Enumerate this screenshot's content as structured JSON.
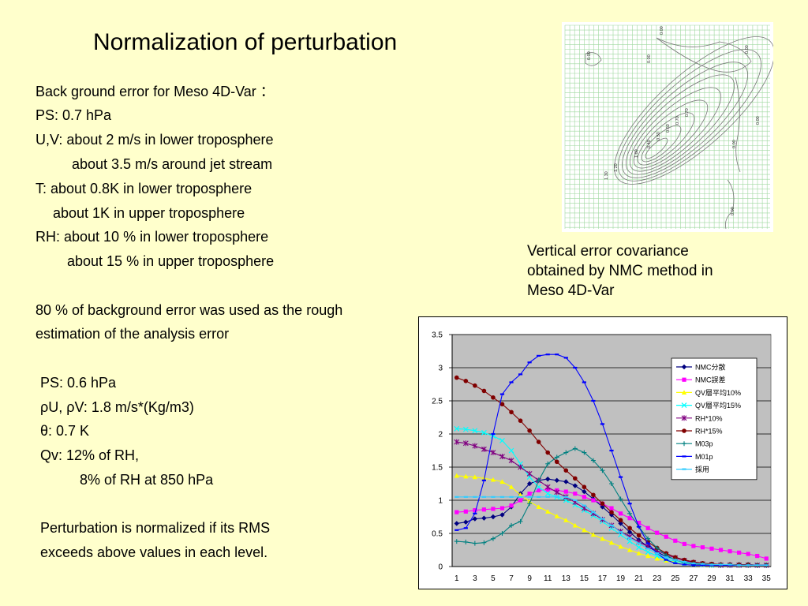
{
  "slide": {
    "title": "Normalization of perturbation",
    "caption": [
      "Vertical error covariance",
      "obtained by NMC method in",
      "Meso 4D-Var"
    ]
  },
  "text_lines": [
    {
      "text": "Back ground error for Meso 4D-Var ："
    },
    {
      "text": "PS: 0.7 hPa"
    },
    {
      "text": "U,V: about 2 m/s in lower troposphere"
    },
    {
      "text": "about 3.5 m/s around jet stream"
    },
    {
      "text": "T: about 0.8K in lower troposphere"
    },
    {
      "text": "about 1K in upper troposphere"
    },
    {
      "text": "RH: about 10 % in lower troposphere"
    },
    {
      "text": "about 15 % in upper troposphere"
    },
    {
      "text": "80 % of background error was used as the rough"
    },
    {
      "text": "estimation of the analysis error"
    },
    {
      "text": "PS: 0.6 hPa"
    },
    {
      "text": "ρU, ρV: 1.8 m/s*(Kg/m3)"
    },
    {
      "text": "θ: 0.7 K"
    },
    {
      "text": "Qv: 12% of RH,"
    },
    {
      "text": "8% of RH at 850 hPa"
    },
    {
      "text": "Perturbation is normalized if its RMS"
    },
    {
      "text": "exceeds above values in each level."
    }
  ],
  "contour_labels": [
    "0.00",
    "0.00",
    "0.00",
    "0.00",
    "0.70",
    "0.70",
    "0.60",
    "0.50",
    "0.40",
    "1.00",
    "1.20",
    "1.30",
    "0.00",
    "0.00",
    "0.00"
  ],
  "chart_data": {
    "type": "line",
    "x": [
      1,
      2,
      3,
      4,
      5,
      6,
      7,
      8,
      9,
      10,
      11,
      12,
      13,
      14,
      15,
      16,
      17,
      18,
      19,
      20,
      21,
      22,
      23,
      24,
      25,
      26,
      27,
      28,
      29,
      30,
      31,
      32,
      33,
      34,
      35
    ],
    "x_tick_labels": [
      "1",
      "3",
      "5",
      "7",
      "9",
      "11",
      "13",
      "15",
      "17",
      "19",
      "21",
      "23",
      "25",
      "27",
      "29",
      "31",
      "33",
      "35"
    ],
    "y_tick_labels": [
      "0",
      "0.5",
      "1",
      "1.5",
      "2",
      "2.5",
      "3",
      "3.5"
    ],
    "ylim": [
      0,
      3.5
    ],
    "grid": true,
    "legend_position": "right",
    "series": [
      {
        "name": "NMC分散",
        "color": "#000080",
        "marker": "diamond",
        "values": [
          0.65,
          0.67,
          0.72,
          0.73,
          0.75,
          0.78,
          0.9,
          1.1,
          1.25,
          1.3,
          1.32,
          1.3,
          1.28,
          1.22,
          1.13,
          1.02,
          0.9,
          0.78,
          0.65,
          0.52,
          0.4,
          0.3,
          0.22,
          0.15,
          0.1,
          0.07,
          0.05,
          0.04,
          0.03,
          0.03,
          0.03,
          0.03,
          0.03,
          0.02,
          0.02
        ]
      },
      {
        "name": "NMC誤差",
        "color": "#ff00ff",
        "marker": "square",
        "values": [
          0.82,
          0.83,
          0.85,
          0.86,
          0.87,
          0.88,
          0.92,
          1.0,
          1.1,
          1.15,
          1.16,
          1.15,
          1.13,
          1.1,
          1.05,
          1.0,
          0.95,
          0.88,
          0.8,
          0.73,
          0.66,
          0.58,
          0.51,
          0.45,
          0.39,
          0.34,
          0.31,
          0.29,
          0.27,
          0.25,
          0.23,
          0.21,
          0.19,
          0.16,
          0.12
        ]
      },
      {
        "name": "QV層平均10%",
        "color": "#ffff00",
        "marker": "triangle",
        "values": [
          1.37,
          1.36,
          1.35,
          1.33,
          1.31,
          1.28,
          1.2,
          1.08,
          0.98,
          0.9,
          0.83,
          0.76,
          0.7,
          0.62,
          0.55,
          0.48,
          0.42,
          0.36,
          0.3,
          0.25,
          0.2,
          0.16,
          0.12,
          0.09,
          0.07,
          0.05,
          0.04,
          0.03,
          0.02,
          0.02,
          0.02,
          0.02,
          0.02,
          0.02,
          0.02
        ]
      },
      {
        "name": "QV層平均15%",
        "color": "#00ffff",
        "marker": "x",
        "values": [
          2.08,
          2.07,
          2.05,
          2.02,
          1.97,
          1.9,
          1.75,
          1.55,
          1.35,
          1.2,
          1.1,
          1.05,
          1.0,
          0.93,
          0.85,
          0.77,
          0.68,
          0.58,
          0.48,
          0.38,
          0.29,
          0.22,
          0.16,
          0.11,
          0.08,
          0.05,
          0.04,
          0.03,
          0.02,
          0.02,
          0.02,
          0.02,
          0.02,
          0.02,
          0.02
        ]
      },
      {
        "name": "RH*10%",
        "color": "#800080",
        "marker": "star",
        "values": [
          1.88,
          1.86,
          1.82,
          1.77,
          1.72,
          1.66,
          1.6,
          1.5,
          1.4,
          1.3,
          1.2,
          1.12,
          1.05,
          0.97,
          0.88,
          0.8,
          0.71,
          0.62,
          0.53,
          0.45,
          0.37,
          0.3,
          0.24,
          0.18,
          0.13,
          0.09,
          0.06,
          0.04,
          0.03,
          0.02,
          0.02,
          0.02,
          0.02,
          0.02,
          0.02
        ]
      },
      {
        "name": "RH*15%",
        "color": "#800000",
        "marker": "circle",
        "values": [
          2.85,
          2.8,
          2.73,
          2.65,
          2.55,
          2.45,
          2.33,
          2.2,
          2.05,
          1.88,
          1.72,
          1.58,
          1.45,
          1.33,
          1.2,
          1.08,
          0.95,
          0.82,
          0.7,
          0.58,
          0.47,
          0.37,
          0.28,
          0.2,
          0.14,
          0.1,
          0.07,
          0.05,
          0.04,
          0.03,
          0.03,
          0.03,
          0.03,
          0.02,
          0.02
        ]
      },
      {
        "name": "M03p",
        "color": "#008080",
        "marker": "plus",
        "values": [
          0.38,
          0.37,
          0.35,
          0.36,
          0.42,
          0.5,
          0.62,
          0.68,
          0.95,
          1.3,
          1.55,
          1.65,
          1.72,
          1.78,
          1.72,
          1.6,
          1.45,
          1.25,
          1.02,
          0.8,
          0.6,
          0.42,
          0.28,
          0.17,
          0.1,
          0.06,
          0.04,
          0.03,
          0.02,
          0.02,
          0.02,
          0.02,
          0.02,
          0.02,
          0.02
        ]
      },
      {
        "name": "M01p",
        "color": "#0000ff",
        "marker": "dash",
        "values": [
          0.55,
          0.58,
          0.8,
          1.3,
          2.0,
          2.6,
          2.78,
          2.9,
          3.08,
          3.18,
          3.2,
          3.2,
          3.15,
          3.0,
          2.78,
          2.5,
          2.15,
          1.75,
          1.35,
          0.95,
          0.6,
          0.35,
          0.2,
          0.1,
          0.05,
          0.03,
          0.02,
          0.02,
          0.02,
          0.02,
          0.02,
          0.02,
          0.02,
          0.02,
          0.02
        ]
      },
      {
        "name": "採用",
        "color": "#33ccff",
        "marker": "dash",
        "values": [
          1.05,
          1.05,
          1.05,
          1.05,
          1.05,
          1.05,
          1.05,
          1.05,
          1.05,
          1.05,
          1.05,
          1.05,
          1.05,
          1.0,
          0.92,
          0.82,
          0.72,
          0.62,
          0.52,
          0.43,
          0.35,
          0.27,
          0.2,
          0.14,
          0.1,
          0.07,
          0.05,
          0.04,
          0.03,
          0.03,
          0.03,
          0.02,
          0.02,
          0.02,
          0.02
        ]
      }
    ]
  }
}
